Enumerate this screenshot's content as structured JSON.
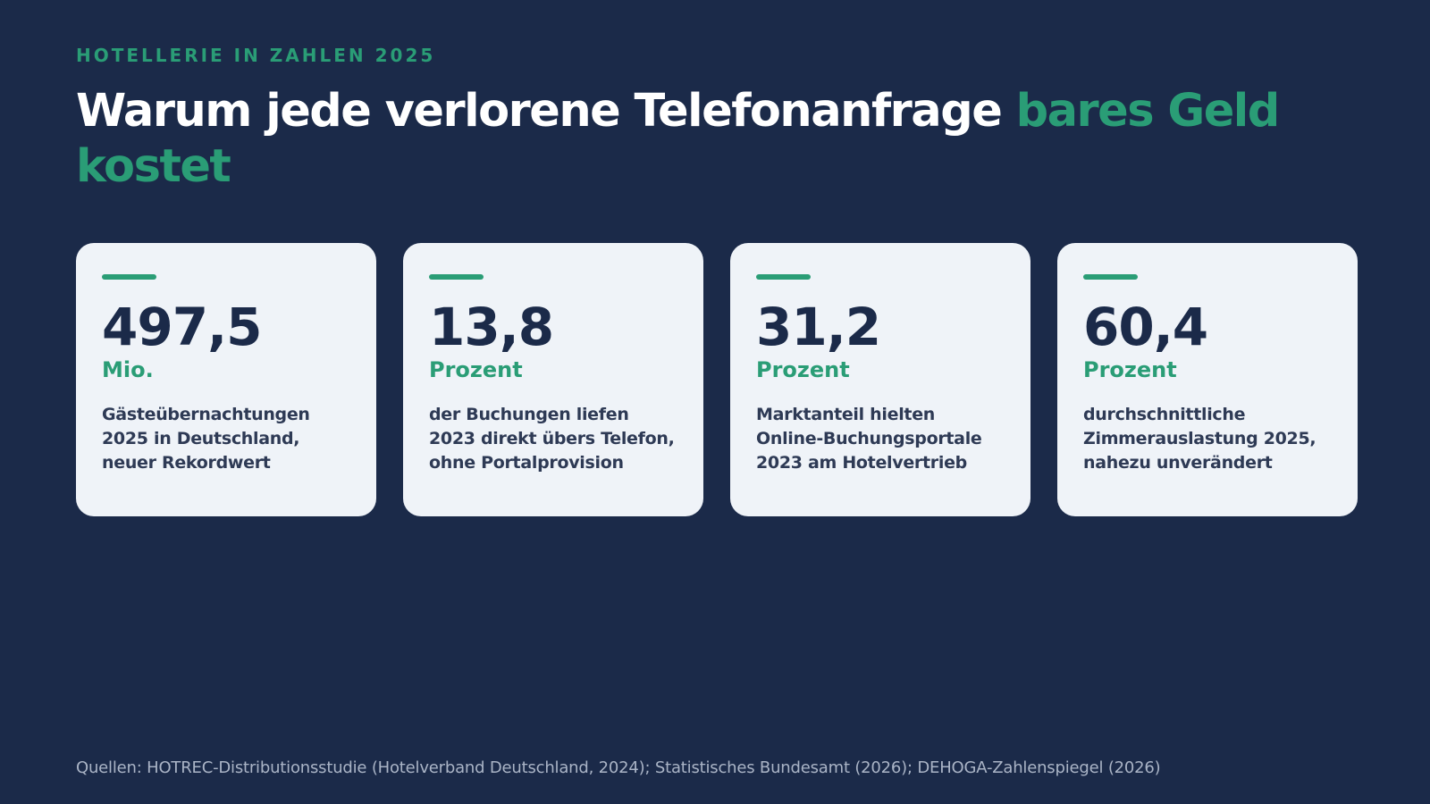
{
  "eyebrow": "HOTELLERIE IN ZAHLEN 2025",
  "headline": {
    "main": "Warum jede verlorene Telefonanfrage ",
    "accent": "bares Geld kostet"
  },
  "cards": [
    {
      "value": "497,5",
      "unit": "Mio.",
      "description": "Gästeübernachtungen 2025 in Deutschland, neuer Rekordwert"
    },
    {
      "value": "13,8",
      "unit": "Prozent",
      "description": "der Buchungen liefen 2023 direkt übers Telefon, ohne Portalprovision"
    },
    {
      "value": "31,2",
      "unit": "Prozent",
      "description": "Marktanteil hielten Online-Buchungsportale 2023 am Hotelvertrieb"
    },
    {
      "value": "60,4",
      "unit": "Prozent",
      "description": "durchschnittliche Zimmerauslastung 2025, nahezu unverändert"
    }
  ],
  "sources": "Quellen: HOTREC-Distributionsstudie (Hotelverband Deutschland, 2024); Statistisches Bundesamt (2026); DEHOGA-Zahlenspiegel (2026)",
  "colors": {
    "background": "#1b2a49",
    "accent": "#2a9d76",
    "card": "#eff3f8"
  }
}
